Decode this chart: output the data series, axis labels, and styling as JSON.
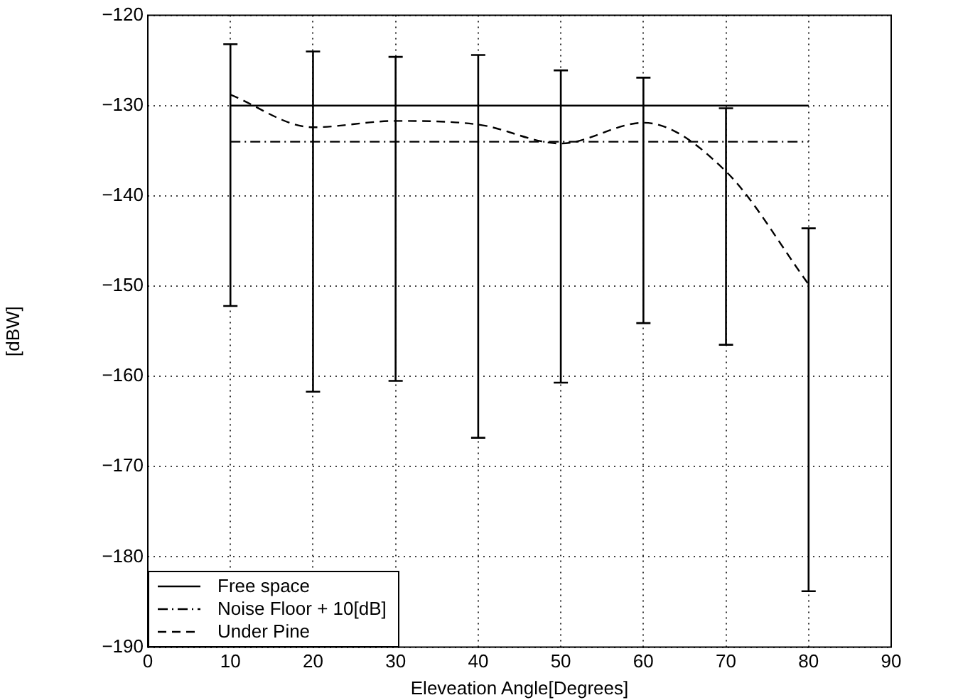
{
  "chart_data": {
    "type": "line",
    "xlabel": "Eleveation Angle[Degrees]",
    "ylabel": "[dBW]",
    "xlim": [
      0,
      90
    ],
    "xticks": [
      0,
      10,
      20,
      30,
      40,
      50,
      60,
      70,
      80,
      90
    ],
    "ylim": [
      -190,
      -120
    ],
    "yticks": [
      -190,
      -180,
      -170,
      -160,
      -150,
      -140,
      -130,
      -120
    ],
    "grid": true,
    "legend": "bottom left",
    "marker": "none",
    "x": [
      10,
      20,
      30,
      40,
      50,
      60,
      70,
      80
    ],
    "series": [
      {
        "name": "Free space",
        "color": "#000000",
        "line_style": "solid",
        "values": [
          -130,
          -130,
          -130,
          -130,
          -130,
          -130,
          -130,
          -130
        ]
      },
      {
        "name": "Noise Floor + 10[dB]",
        "color": "#000000",
        "line_style": "dashdot",
        "values": [
          -134,
          -134,
          -134,
          -134,
          -134,
          -134,
          -134,
          -134
        ]
      },
      {
        "name": "Under Pine",
        "color": "#000000",
        "line_style": "dashed",
        "values": [
          -128.8,
          -132.4,
          -131.7,
          -132.1,
          -134.2,
          -131.9,
          -137.3,
          -149.8
        ],
        "errors": [
          [
            -152.2,
            -123.2
          ],
          [
            -161.7,
            -124
          ],
          [
            -160.5,
            -124.6
          ],
          [
            -166.8,
            -124.4
          ],
          [
            -160.7,
            -126.1
          ],
          [
            -154.1,
            -126.9
          ],
          [
            -156.5,
            -130.3
          ],
          [
            -183.8,
            -143.6
          ]
        ]
      }
    ]
  }
}
